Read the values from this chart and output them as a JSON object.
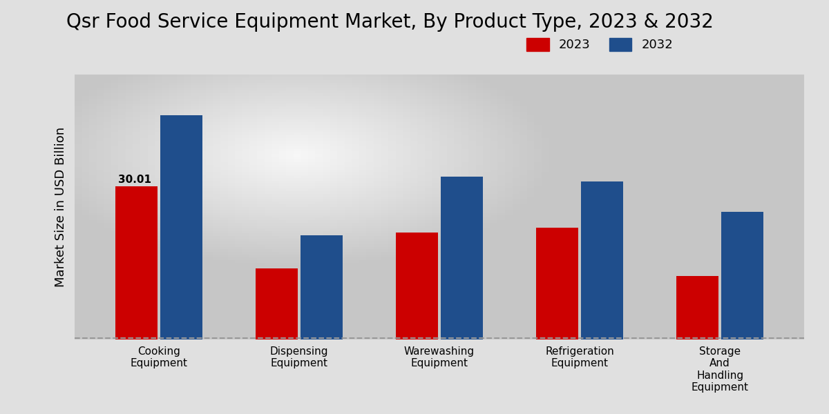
{
  "title": "Qsr Food Service Equipment Market, By Product Type, 2023 & 2032",
  "ylabel": "Market Size in USD Billion",
  "categories": [
    "Cooking\nEquipment",
    "Dispensing\nEquipment",
    "Warewashing\nEquipment",
    "Refrigeration\nEquipment",
    "Storage\nAnd\nHandling\nEquipment"
  ],
  "values_2023": [
    30.01,
    14.0,
    21.0,
    22.0,
    12.5
  ],
  "values_2032": [
    44.0,
    20.5,
    32.0,
    31.0,
    25.0
  ],
  "color_2023": "#cc0000",
  "color_2032": "#1f4e8c",
  "bar_width": 0.3,
  "annotation_label": "30.01",
  "ylim": [
    0,
    52
  ],
  "background_color_light": "#f5f5f5",
  "background_color_dark": "#cccccc",
  "legend_2023": "2023",
  "legend_2032": "2032",
  "title_fontsize": 20,
  "axis_label_fontsize": 13,
  "tick_fontsize": 11,
  "legend_fontsize": 13,
  "dashed_line_color": "#999999"
}
